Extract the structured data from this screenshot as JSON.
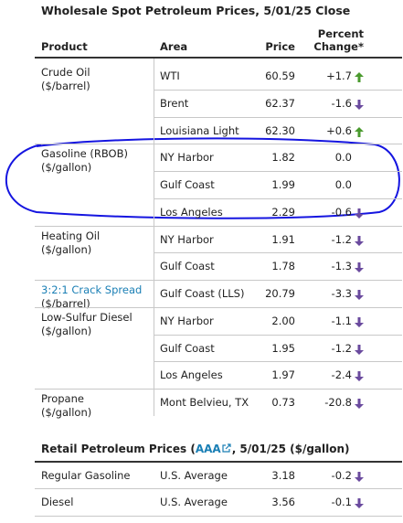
{
  "title": "Wholesale Spot Petroleum Prices, 5/01/25 Close",
  "headers": [
    "Product",
    "Area",
    "Price",
    "Percent Change*"
  ],
  "groups": [
    {
      "product": "Crude Oil",
      "unit": "($/barrel)",
      "rows": [
        {
          "area": "WTI",
          "price": "60.59",
          "change": "+1.7"
        },
        {
          "area": "Brent",
          "price": "62.37",
          "change": "-1.6"
        },
        {
          "area": "Louisiana Light",
          "price": "62.30",
          "change": "+0.6"
        }
      ]
    },
    {
      "product": "Gasoline (RBOB)",
      "unit": "($/gallon)",
      "rows": [
        {
          "area": "NY Harbor",
          "price": "1.82",
          "change": "0.0"
        },
        {
          "area": "Gulf Coast",
          "price": "1.99",
          "change": "0.0"
        },
        {
          "area": "Los Angeles",
          "price": "2.29",
          "change": "-0.6"
        }
      ]
    },
    {
      "product": "Heating Oil",
      "unit": "($/gallon)",
      "rows": [
        {
          "area": "NY Harbor",
          "price": "1.91",
          "change": "-1.2"
        },
        {
          "area": "Gulf Coast",
          "price": "1.78",
          "change": "-1.3"
        }
      ]
    },
    {
      "product": "3:2:1 Crack Spread",
      "unit": "($/barrel)",
      "link": true,
      "rows": [
        {
          "area": "Gulf Coast (LLS)",
          "price": "20.79",
          "change": "-3.3"
        }
      ]
    },
    {
      "product": "Low-Sulfur Diesel",
      "unit": "($/gallon)",
      "rows": [
        {
          "area": "NY Harbor",
          "price": "2.00",
          "change": "-1.1"
        },
        {
          "area": "Gulf Coast",
          "price": "1.95",
          "change": "-1.2"
        },
        {
          "area": "Los Angeles",
          "price": "1.97",
          "change": "-2.4"
        }
      ]
    },
    {
      "product": "Propane",
      "unit": "($/gallon)",
      "rows": [
        {
          "area": "Mont Belvieu, TX",
          "price": "0.73",
          "change": "-20.8"
        }
      ]
    }
  ],
  "retail": {
    "title_start": "Retail Petroleum Prices (",
    "link": "AAA",
    "title_end": ", 5/01/25 ($/gallon)",
    "rows": [
      {
        "product": "Regular Gasoline",
        "area": "U.S. Average",
        "price": "3.18",
        "change": "-0.2"
      },
      {
        "product": "Diesel",
        "area": "U.S. Average",
        "price": "3.56",
        "change": "-0.1"
      }
    ]
  }
}
